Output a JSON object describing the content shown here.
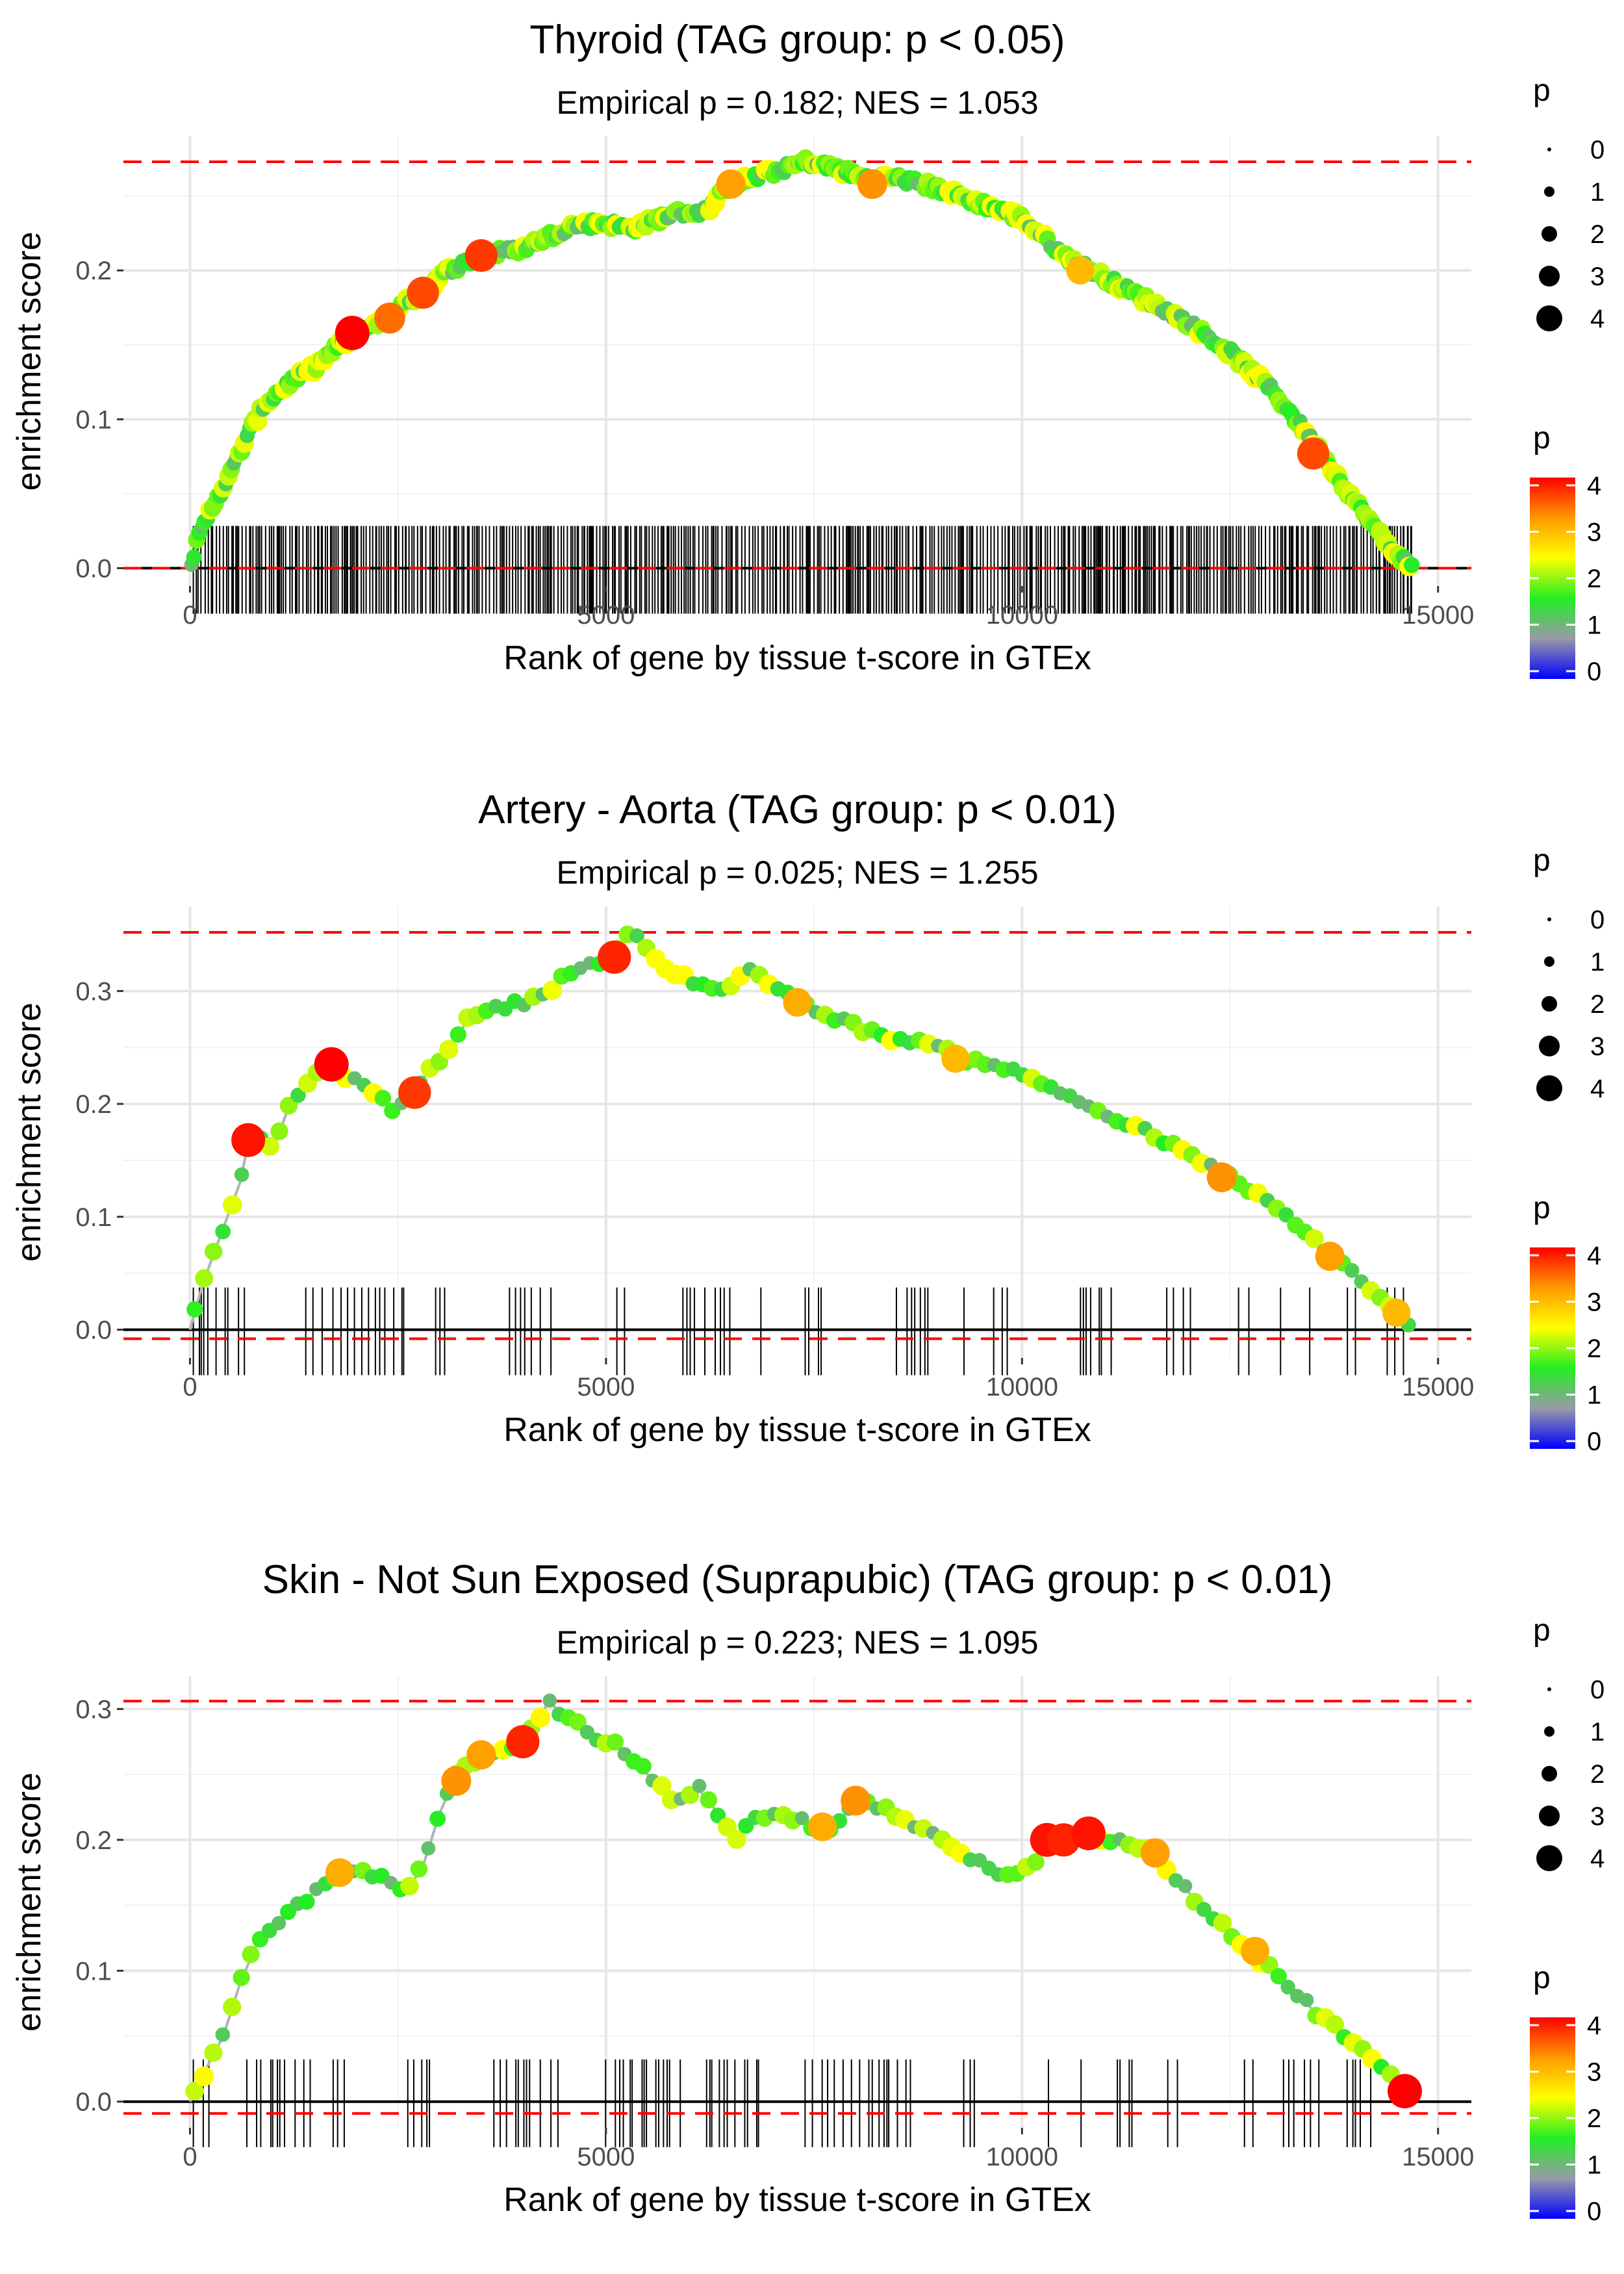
{
  "colorbar_colors": [
    "#0000ff",
    "#9999a8",
    "#22ee22",
    "#ffff00",
    "#ff9900",
    "#ff0000"
  ],
  "chart_data": [
    {
      "type": "line",
      "title": "Thyroid (TAG group: p < 0.05)",
      "subtitle": "Empirical p = 0.182; NES = 1.053",
      "xlabel": "Rank of gene by tissue t-score in GTEx",
      "ylabel": "enrichment score",
      "xlim": [
        -800,
        15400
      ],
      "ylim": [
        -0.012,
        0.29
      ],
      "xticks": [
        0,
        5000,
        10000,
        15000
      ],
      "xtick_labels": [
        "0",
        "5000",
        "10000",
        "15000"
      ],
      "yticks": [
        0.0,
        0.1,
        0.2
      ],
      "ytick_labels": [
        "0.0",
        "0.1",
        "0.2"
      ],
      "max_es": 0.273,
      "min_es": 0.0,
      "n_genes": 14700,
      "rug_density": "dense",
      "curve": [
        [
          0,
          0
        ],
        [
          100,
          0.02
        ],
        [
          300,
          0.045
        ],
        [
          500,
          0.065
        ],
        [
          700,
          0.09
        ],
        [
          900,
          0.11
        ],
        [
          1200,
          0.125
        ],
        [
          1500,
          0.135
        ],
        [
          1800,
          0.15
        ],
        [
          2100,
          0.16
        ],
        [
          2500,
          0.175
        ],
        [
          2800,
          0.185
        ],
        [
          3100,
          0.2
        ],
        [
          3500,
          0.21
        ],
        [
          4000,
          0.215
        ],
        [
          4600,
          0.23
        ],
        [
          5000,
          0.232
        ],
        [
          5300,
          0.228
        ],
        [
          5800,
          0.238
        ],
        [
          6200,
          0.24
        ],
        [
          6500,
          0.258
        ],
        [
          7000,
          0.266
        ],
        [
          7400,
          0.273
        ],
        [
          7800,
          0.268
        ],
        [
          8100,
          0.262
        ],
        [
          8500,
          0.262
        ],
        [
          9000,
          0.255
        ],
        [
          9500,
          0.245
        ],
        [
          10000,
          0.235
        ],
        [
          10500,
          0.21
        ],
        [
          11000,
          0.195
        ],
        [
          11500,
          0.18
        ],
        [
          12000,
          0.165
        ],
        [
          12500,
          0.145
        ],
        [
          13000,
          0.12
        ],
        [
          13500,
          0.085
        ],
        [
          14000,
          0.045
        ],
        [
          14400,
          0.015
        ],
        [
          14700,
          0
        ]
      ],
      "highlights": [
        [
          1950,
          0.158,
          4.2
        ],
        [
          2400,
          0.168,
          3.6
        ],
        [
          2800,
          0.185,
          3.8
        ],
        [
          3500,
          0.21,
          3.9
        ],
        [
          6500,
          0.258,
          3.3
        ],
        [
          8200,
          0.258,
          3.4
        ],
        [
          10700,
          0.2,
          3.1
        ],
        [
          13500,
          0.077,
          3.8
        ]
      ],
      "size_legend": {
        "title": "p",
        "labels": [
          "0",
          "1",
          "2",
          "3",
          "4"
        ]
      },
      "color_legend": {
        "title": "p",
        "labels": [
          "0",
          "1",
          "2",
          "3",
          "4"
        ]
      }
    },
    {
      "type": "line",
      "title": "Artery - Aorta (TAG group: p < 0.01)",
      "subtitle": "Empirical p = 0.025; NES = 1.255",
      "xlabel": "Rank of gene by tissue t-score in GTEx",
      "ylabel": "enrichment score",
      "xlim": [
        -800,
        15400
      ],
      "ylim": [
        -0.025,
        0.375
      ],
      "xticks": [
        0,
        5000,
        10000,
        15000
      ],
      "xtick_labels": [
        "0",
        "5000",
        "10000",
        "15000"
      ],
      "yticks": [
        0.0,
        0.1,
        0.2,
        0.3
      ],
      "ytick_labels": [
        "0.0",
        "0.1",
        "0.2",
        "0.3"
      ],
      "max_es": 0.352,
      "min_es": -0.008,
      "n_genes": 14700,
      "rug_density": "sparse",
      "curve": [
        [
          0,
          0
        ],
        [
          150,
          0.04
        ],
        [
          400,
          0.09
        ],
        [
          600,
          0.13
        ],
        [
          700,
          0.165
        ],
        [
          850,
          0.17
        ],
        [
          1000,
          0.16
        ],
        [
          1200,
          0.2
        ],
        [
          1400,
          0.22
        ],
        [
          1650,
          0.23
        ],
        [
          1900,
          0.225
        ],
        [
          2100,
          0.215
        ],
        [
          2450,
          0.195
        ],
        [
          2650,
          0.21
        ],
        [
          3000,
          0.24
        ],
        [
          3400,
          0.28
        ],
        [
          3700,
          0.285
        ],
        [
          4000,
          0.29
        ],
        [
          4300,
          0.3
        ],
        [
          4600,
          0.32
        ],
        [
          5000,
          0.325
        ],
        [
          5300,
          0.352
        ],
        [
          5700,
          0.32
        ],
        [
          6000,
          0.31
        ],
        [
          6400,
          0.3
        ],
        [
          6700,
          0.32
        ],
        [
          7300,
          0.29
        ],
        [
          7800,
          0.275
        ],
        [
          8300,
          0.26
        ],
        [
          8800,
          0.255
        ],
        [
          9300,
          0.24
        ],
        [
          9700,
          0.235
        ],
        [
          10000,
          0.225
        ],
        [
          10500,
          0.21
        ],
        [
          11000,
          0.19
        ],
        [
          11500,
          0.175
        ],
        [
          12000,
          0.155
        ],
        [
          12500,
          0.135
        ],
        [
          13000,
          0.11
        ],
        [
          13500,
          0.08
        ],
        [
          14000,
          0.05
        ],
        [
          14400,
          0.02
        ],
        [
          14700,
          0
        ]
      ],
      "highlights": [
        [
          700,
          0.168,
          4.1
        ],
        [
          1700,
          0.235,
          4.2
        ],
        [
          2700,
          0.21,
          3.9
        ],
        [
          5100,
          0.33,
          4.0
        ],
        [
          7300,
          0.29,
          3.2
        ],
        [
          9200,
          0.24,
          3.1
        ],
        [
          12400,
          0.135,
          3.4
        ],
        [
          13700,
          0.065,
          3.3
        ],
        [
          14500,
          0.015,
          3.1
        ]
      ],
      "size_legend": {
        "title": "p",
        "labels": [
          "0",
          "1",
          "2",
          "3",
          "4"
        ]
      },
      "color_legend": {
        "title": "p",
        "labels": [
          "0",
          "1",
          "2",
          "3",
          "4"
        ]
      }
    },
    {
      "type": "line",
      "title": "Skin - Not Sun Exposed (Suprapubic) (TAG group: p < 0.01)",
      "subtitle": "Empirical p = 0.223; NES = 1.095",
      "xlabel": "Rank of gene by tissue t-score in GTEx",
      "ylabel": "enrichment score",
      "xlim": [
        -800,
        15400
      ],
      "ylim": [
        -0.02,
        0.325
      ],
      "xticks": [
        0,
        5000,
        10000,
        15000
      ],
      "xtick_labels": [
        "0",
        "5000",
        "10000",
        "15000"
      ],
      "yticks": [
        0.0,
        0.1,
        0.2,
        0.3
      ],
      "ytick_labels": [
        "0.0",
        "0.1",
        "0.2",
        "0.3"
      ],
      "max_es": 0.306,
      "min_es": -0.009,
      "n_genes": 14700,
      "rug_density": "sparse",
      "curve": [
        [
          0,
          0
        ],
        [
          150,
          0.02
        ],
        [
          400,
          0.05
        ],
        [
          600,
          0.09
        ],
        [
          800,
          0.12
        ],
        [
          1100,
          0.14
        ],
        [
          1400,
          0.155
        ],
        [
          1700,
          0.17
        ],
        [
          2000,
          0.18
        ],
        [
          2300,
          0.17
        ],
        [
          2600,
          0.16
        ],
        [
          2800,
          0.18
        ],
        [
          3000,
          0.22
        ],
        [
          3200,
          0.25
        ],
        [
          3500,
          0.26
        ],
        [
          3800,
          0.27
        ],
        [
          4000,
          0.275
        ],
        [
          4200,
          0.29
        ],
        [
          4300,
          0.306
        ],
        [
          4800,
          0.28
        ],
        [
          5200,
          0.27
        ],
        [
          5800,
          0.23
        ],
        [
          6100,
          0.24
        ],
        [
          6600,
          0.2
        ],
        [
          6800,
          0.22
        ],
        [
          7300,
          0.215
        ],
        [
          7700,
          0.205
        ],
        [
          8000,
          0.23
        ],
        [
          8500,
          0.22
        ],
        [
          9000,
          0.2
        ],
        [
          9400,
          0.185
        ],
        [
          9800,
          0.17
        ],
        [
          10100,
          0.18
        ],
        [
          10400,
          0.2
        ],
        [
          10800,
          0.205
        ],
        [
          11100,
          0.2
        ],
        [
          11600,
          0.19
        ],
        [
          12000,
          0.16
        ],
        [
          12500,
          0.13
        ],
        [
          13000,
          0.1
        ],
        [
          13500,
          0.07
        ],
        [
          14000,
          0.045
        ],
        [
          14400,
          0.02
        ],
        [
          14600,
          0.008
        ]
      ],
      "highlights": [
        [
          1800,
          0.175,
          3.2
        ],
        [
          3200,
          0.245,
          3.4
        ],
        [
          3500,
          0.265,
          3.3
        ],
        [
          4000,
          0.275,
          4.0
        ],
        [
          8000,
          0.23,
          3.4
        ],
        [
          7600,
          0.21,
          3.2
        ],
        [
          10300,
          0.2,
          4.1
        ],
        [
          10500,
          0.2,
          4.0
        ],
        [
          10800,
          0.205,
          4.1
        ],
        [
          11600,
          0.19,
          3.3
        ],
        [
          12800,
          0.115,
          3.2
        ],
        [
          14600,
          0.008,
          4.2
        ]
      ],
      "size_legend": {
        "title": "p",
        "labels": [
          "0",
          "1",
          "2",
          "3",
          "4"
        ]
      },
      "color_legend": {
        "title": "p",
        "labels": [
          "0",
          "1",
          "2",
          "3",
          "4"
        ]
      }
    }
  ]
}
